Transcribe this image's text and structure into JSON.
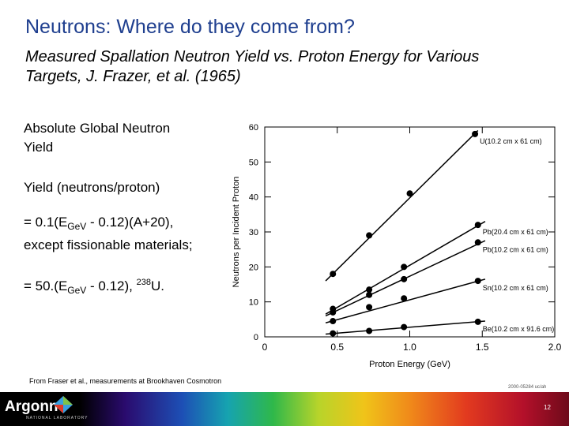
{
  "title": "Neutrons:  Where do they come from?",
  "subtitle": "Measured Spallation Neutron Yield vs. Proton Energy for Various Targets, J. Frazer, et al. (1965)",
  "left": {
    "l1": "Absolute Global Neutron Yield",
    "l2": "Yield (neutrons/proton)",
    "f1_a": "= 0.1(E",
    "f1_sub": "GeV",
    "f1_b": " - 0.12)(A+20),",
    "f1_c": "except fissionable materials;",
    "f2_a": "= 50.(E",
    "f2_sub": "GeV",
    "f2_b": " - 0.12), ",
    "f2_sup": "238",
    "f2_c": "U."
  },
  "credit": "From Fraser et al., measurements at Brookhaven Cosmotron",
  "figure_code": "2000-05284 uc/ah",
  "footer": {
    "logo": "Argonne",
    "logo_sub": "NATIONAL LABORATORY",
    "page": "12"
  },
  "chart_data": {
    "type": "scatter",
    "xlabel": "Proton Energy (GeV)",
    "ylabel": "Neutrons per Incident Proton",
    "xlim": [
      0,
      2.0
    ],
    "ylim": [
      0,
      60
    ],
    "xticks": [
      "0",
      "0.5",
      "1.0",
      "1.5",
      "2.0"
    ],
    "yticks": [
      "0",
      "10",
      "20",
      "30",
      "40",
      "50",
      "60"
    ],
    "series": [
      {
        "name": "U(10.2 cm x 61 cm)",
        "x": [
          0.47,
          0.72,
          1.0,
          1.45
        ],
        "y": [
          18,
          29,
          41,
          58
        ],
        "line": [
          [
            0.42,
            16
          ],
          [
            1.47,
            59
          ]
        ]
      },
      {
        "name": "Pb(20.4 cm x 61 cm)",
        "x": [
          0.47,
          0.72,
          0.96,
          1.47
        ],
        "y": [
          8,
          13.5,
          20,
          32
        ],
        "line": [
          [
            0.42,
            6.5
          ],
          [
            1.52,
            33
          ]
        ]
      },
      {
        "name": "Pb(10.2 cm x 61 cm)",
        "x": [
          0.47,
          0.72,
          0.96,
          1.47
        ],
        "y": [
          7,
          12,
          16.5,
          27
        ],
        "line": [
          [
            0.42,
            6
          ],
          [
            1.52,
            27.5
          ]
        ]
      },
      {
        "name": "Sn(10.2 cm x 61 cm)",
        "x": [
          0.47,
          0.72,
          0.96,
          1.47
        ],
        "y": [
          4.5,
          8.5,
          11,
          16
        ],
        "line": [
          [
            0.42,
            4
          ],
          [
            1.52,
            16.5
          ]
        ]
      },
      {
        "name": "Be(10.2 cm x 91.6 cm)",
        "x": [
          0.47,
          0.72,
          0.96,
          1.47
        ],
        "y": [
          1,
          1.7,
          2.8,
          4.3
        ],
        "line": [
          [
            0.42,
            0.8
          ],
          [
            1.52,
            4.5
          ]
        ]
      }
    ]
  }
}
